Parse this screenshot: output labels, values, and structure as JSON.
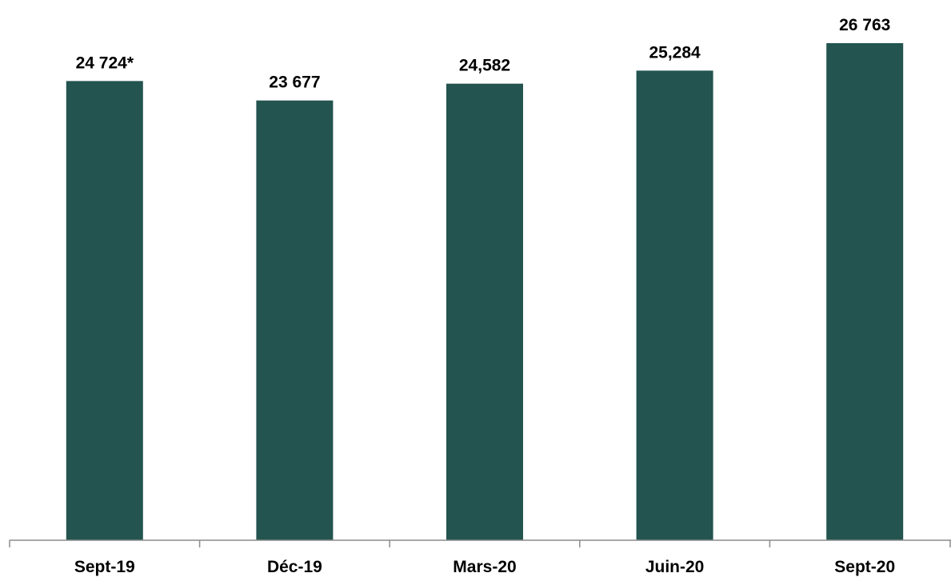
{
  "chart_data": {
    "type": "bar",
    "categories": [
      "Sept-19",
      "Déc-19",
      "Mars-20",
      "Juin-20",
      "Sept-20"
    ],
    "values": [
      24724,
      23677,
      24582,
      25284,
      26763
    ],
    "data_labels": [
      "24 724*",
      "23 677",
      "24,582",
      "25,284",
      "26 763"
    ],
    "ylim": [
      0,
      26763
    ],
    "bar_color": "#23544F",
    "axis_color": "#8C8C8C",
    "grid": false,
    "legend": "none"
  }
}
